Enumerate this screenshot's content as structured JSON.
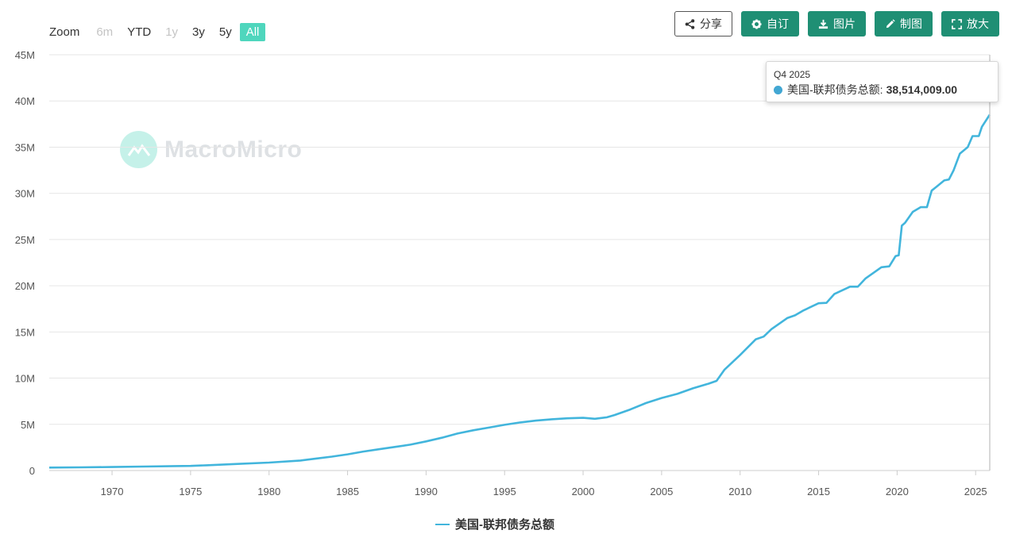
{
  "zoom": {
    "label": "Zoom",
    "buttons": [
      {
        "label": "6m",
        "state": "disabled"
      },
      {
        "label": "YTD",
        "state": "normal"
      },
      {
        "label": "1y",
        "state": "disabled"
      },
      {
        "label": "3y",
        "state": "normal"
      },
      {
        "label": "5y",
        "state": "normal"
      },
      {
        "label": "All",
        "state": "active"
      }
    ]
  },
  "toolbar": {
    "share_label": "分享",
    "customize_label": "自订",
    "image_label": "图片",
    "draw_label": "制图",
    "expand_label": "放大"
  },
  "watermark": {
    "text": "MacroMicro"
  },
  "tooltip": {
    "period": "Q4 2025",
    "series": "美国-联邦债务总额:",
    "value": "38,514,009.00"
  },
  "colors": {
    "series": "#42b5dc",
    "accent": "#1f8f74",
    "zoom_active": "#4fd6bd"
  },
  "chart_data": {
    "type": "line",
    "x_range": [
      1966,
      2025.9
    ],
    "xticks": [
      1970,
      1975,
      1980,
      1985,
      1990,
      1995,
      2000,
      2005,
      2010,
      2015,
      2020,
      2025
    ],
    "xtick_labels": [
      "1970",
      "1975",
      "1980",
      "1985",
      "1990",
      "1995",
      "2000",
      "2005",
      "2010",
      "2015",
      "2020",
      "2025"
    ],
    "ylim": [
      0,
      45000000
    ],
    "yticks": [
      0,
      5000000,
      10000000,
      15000000,
      20000000,
      25000000,
      30000000,
      35000000,
      40000000,
      45000000
    ],
    "ytick_labels": [
      "0",
      "5M",
      "10M",
      "15M",
      "20M",
      "25M",
      "30M",
      "35M",
      "40M",
      "45M"
    ],
    "grid": true,
    "legend": "bottom-center",
    "series": [
      {
        "name": "美国-联邦债务总额",
        "x": [
          1966,
          1968,
          1970,
          1972,
          1974,
          1975,
          1976,
          1978,
          1980,
          1982,
          1983,
          1984,
          1985,
          1986,
          1987,
          1988,
          1989,
          1990,
          1991,
          1992,
          1993,
          1994,
          1995,
          1996,
          1997,
          1998,
          1999,
          2000,
          2000.75,
          2001.5,
          2002,
          2003,
          2004,
          2005,
          2006,
          2007,
          2008,
          2008.5,
          2009,
          2010,
          2011,
          2011.5,
          2012,
          2013,
          2013.5,
          2014,
          2015,
          2015.5,
          2016,
          2017,
          2017.5,
          2018,
          2019,
          2019.5,
          2019.9,
          2020.1,
          2020.3,
          2020.5,
          2021,
          2021.5,
          2021.9,
          2022.2,
          2022.5,
          2023,
          2023.3,
          2023.6,
          2024,
          2024.5,
          2024.8,
          2025.2,
          2025.4,
          2025.9
        ],
        "y": [
          320000,
          340000,
          380000,
          430000,
          480000,
          500000,
          570000,
          710000,
          860000,
          1080000,
          1300000,
          1500000,
          1750000,
          2050000,
          2300000,
          2550000,
          2800000,
          3150000,
          3550000,
          4000000,
          4350000,
          4650000,
          4950000,
          5200000,
          5400000,
          5550000,
          5650000,
          5700000,
          5600000,
          5750000,
          6000000,
          6600000,
          7300000,
          7850000,
          8300000,
          8900000,
          9400000,
          9700000,
          10900000,
          12500000,
          14200000,
          14500000,
          15300000,
          16500000,
          16800000,
          17300000,
          18100000,
          18150000,
          19100000,
          19900000,
          19900000,
          20800000,
          22000000,
          22100000,
          23200000,
          23300000,
          26500000,
          26800000,
          28000000,
          28500000,
          28500000,
          30300000,
          30700000,
          31400000,
          31500000,
          32500000,
          34300000,
          35000000,
          36200000,
          36200000,
          37200000,
          38514009
        ]
      }
    ]
  },
  "legend": {
    "label": "美国-联邦债务总额"
  }
}
